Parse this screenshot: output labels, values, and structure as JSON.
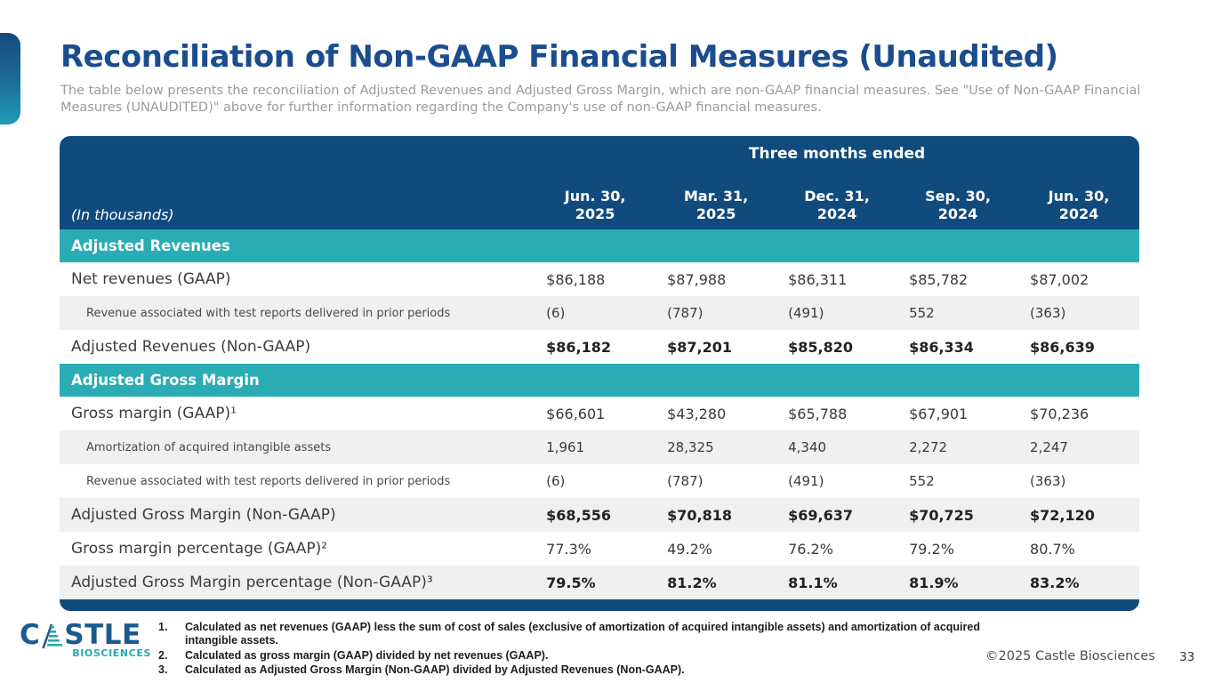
{
  "slide": {
    "title": "Reconciliation of Non-GAAP Financial Measures (Unaudited)",
    "subtitle": "The table below presents the reconciliation of Adjusted Revenues and Adjusted Gross Margin, which are non-GAAP financial measures. See \"Use of Non-GAAP Financial Measures (UNAUDITED)\" above for further information regarding the Company's use of non-GAAP financial measures.",
    "copyright": "©2025 Castle Biosciences",
    "page_number": "33"
  },
  "logo": {
    "word_start": "C",
    "word_end": "STLE",
    "subtext": "BIOSCIENCES"
  },
  "table": {
    "spanner": "Three months ended",
    "row_label_note": "(In thousands)",
    "columns": [
      {
        "l1": "Jun. 30,",
        "l2": "2025"
      },
      {
        "l1": "Mar. 31,",
        "l2": "2025"
      },
      {
        "l1": "Dec. 31,",
        "l2": "2024"
      },
      {
        "l1": "Sep. 30,",
        "l2": "2024"
      },
      {
        "l1": "Jun. 30,",
        "l2": "2024"
      }
    ],
    "sections": [
      {
        "header": "Adjusted Revenues",
        "rows": [
          {
            "label": "Net revenues (GAAP)",
            "style": "normal",
            "values": [
              "$86,188",
              "$87,988",
              "$86,311",
              "$85,782",
              "$87,002"
            ]
          },
          {
            "label": "Revenue associated with test reports delivered in prior periods",
            "style": "sub",
            "values": [
              "(6)",
              "(787)",
              "(491)",
              "552",
              "(363)"
            ]
          },
          {
            "label": "Adjusted Revenues (Non-GAAP)",
            "style": "total",
            "values": [
              "$86,182",
              "$87,201",
              "$85,820",
              "$86,334",
              "$86,639"
            ]
          }
        ]
      },
      {
        "header": "Adjusted Gross Margin",
        "rows": [
          {
            "label": "Gross margin (GAAP)¹",
            "style": "normal",
            "values": [
              "$66,601",
              "$43,280",
              "$65,788",
              "$67,901",
              "$70,236"
            ]
          },
          {
            "label": "Amortization of acquired intangible assets",
            "style": "sub",
            "values": [
              "1,961",
              "28,325",
              "4,340",
              "2,272",
              "2,247"
            ]
          },
          {
            "label": "Revenue associated with test reports delivered in prior periods",
            "style": "sub",
            "values": [
              "(6)",
              "(787)",
              "(491)",
              "552",
              "(363)"
            ]
          },
          {
            "label": "Adjusted Gross Margin (Non-GAAP)",
            "style": "total",
            "values": [
              "$68,556",
              "$70,818",
              "$69,637",
              "$70,725",
              "$72,120"
            ]
          },
          {
            "label": "Gross margin percentage (GAAP)²",
            "style": "normal",
            "values": [
              "77.3%",
              "49.2%",
              "76.2%",
              "79.2%",
              "80.7%"
            ]
          },
          {
            "label": "Adjusted Gross Margin percentage (Non-GAAP)³",
            "style": "total",
            "values": [
              "79.5%",
              "81.2%",
              "81.1%",
              "81.9%",
              "83.2%"
            ]
          }
        ]
      }
    ]
  },
  "footnotes": [
    {
      "num": "1.",
      "text": "Calculated as net revenues (GAAP) less the sum of cost of sales (exclusive of amortization of acquired intangible assets) and amortization of acquired intangible assets."
    },
    {
      "num": "2.",
      "text": "Calculated as gross margin (GAAP) divided by net revenues (GAAP)."
    },
    {
      "num": "3.",
      "text": "Calculated as Adjusted Gross Margin (Non-GAAP) divided by Adjusted Revenues (Non-GAAP)."
    }
  ],
  "colors": {
    "header_blue": "#114b7e",
    "section_teal": "#29acb3",
    "title_blue": "#1b4d8e",
    "row_alt_gray": "#f0f0f0",
    "logo_blue": "#1c5a8d",
    "logo_teal": "#29a8b0"
  }
}
